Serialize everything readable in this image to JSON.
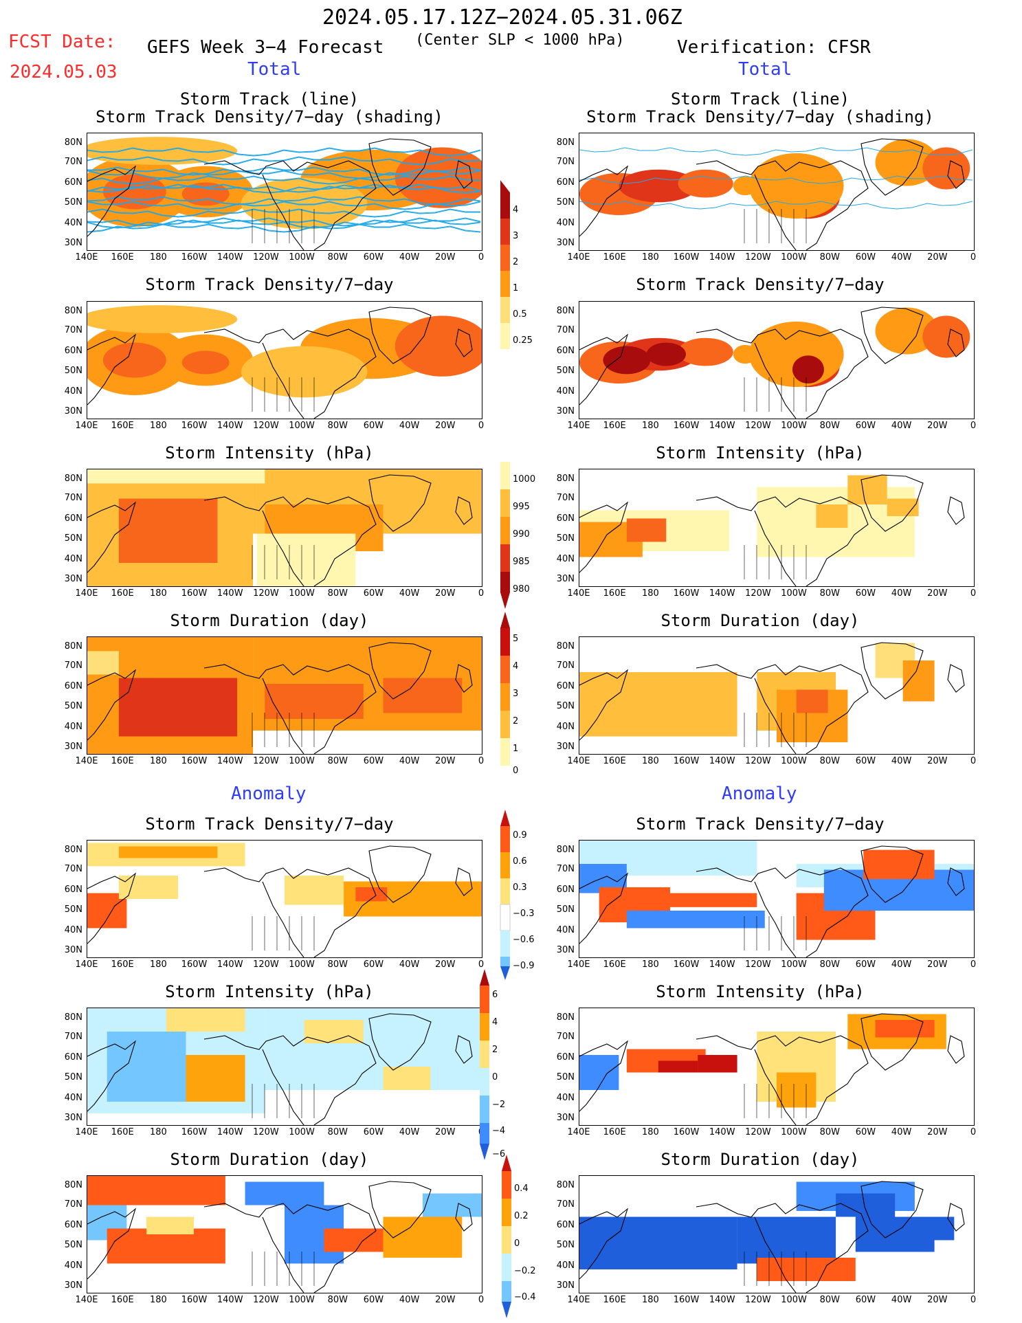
{
  "header": {
    "period": "2024.05.17.12Z−2024.05.31.06Z",
    "fcst_label": "FCST Date:",
    "fcst_date": "2024.05.03",
    "model": "GEFS Week 3−4 Forecast",
    "criterion": "(Center SLP < 1000 hPa)",
    "verification": "Verification: CFSR"
  },
  "sections": {
    "total_left": "Total",
    "total_right": "Total",
    "anomaly_left": "Anomaly",
    "anomaly_right": "Anomaly"
  },
  "titles": {
    "track_line": "Storm Track (line)",
    "track_density_shading": "Storm Track Density/7−day (shading)",
    "track_density": "Storm Track Density/7−day",
    "intensity": "Storm Intensity (hPa)",
    "duration": "Storm Duration (day)"
  },
  "axes": {
    "lat_labels": [
      "80N",
      "70N",
      "60N",
      "50N",
      "40N",
      "30N"
    ],
    "lon_labels": [
      "140E",
      "160E",
      "180",
      "160W",
      "140W",
      "120W",
      "100W",
      "80W",
      "60W",
      "40W",
      "20W",
      "0"
    ]
  },
  "colorbars": {
    "density": [
      "4",
      "3",
      "2",
      "1",
      "0.5",
      "0.25"
    ],
    "intensity": [
      "1000",
      "995",
      "990",
      "985",
      "980"
    ],
    "duration": [
      "5",
      "4",
      "3",
      "2",
      "1",
      "0"
    ],
    "density_anom": [
      "0.9",
      "0.6",
      "0.3",
      "−0.3",
      "−0.6",
      "−0.9"
    ],
    "intensity_anom": [
      "6",
      "4",
      "2",
      "0",
      "−2",
      "−4",
      "−6"
    ],
    "duration_anom": [
      "0.4",
      "0.2",
      "0",
      "−0.2",
      "−0.4"
    ]
  },
  "palette": {
    "total": [
      "#fff7b0",
      "#ffdf7a",
      "#ffbe3c",
      "#ff9a14",
      "#f8661c",
      "#e03518",
      "#a80c0c"
    ],
    "anomaly_warm": [
      "#ffe27a",
      "#ffa30d",
      "#ff5a18",
      "#c8100c"
    ],
    "anomaly_cool": [
      "#c6f2ff",
      "#74c6ff",
      "#3f8cff",
      "#1f5fdc"
    ],
    "track_line": "#1fa8e8",
    "title_red": "#ff2a2a",
    "section_blue": "#2f3cff"
  }
}
